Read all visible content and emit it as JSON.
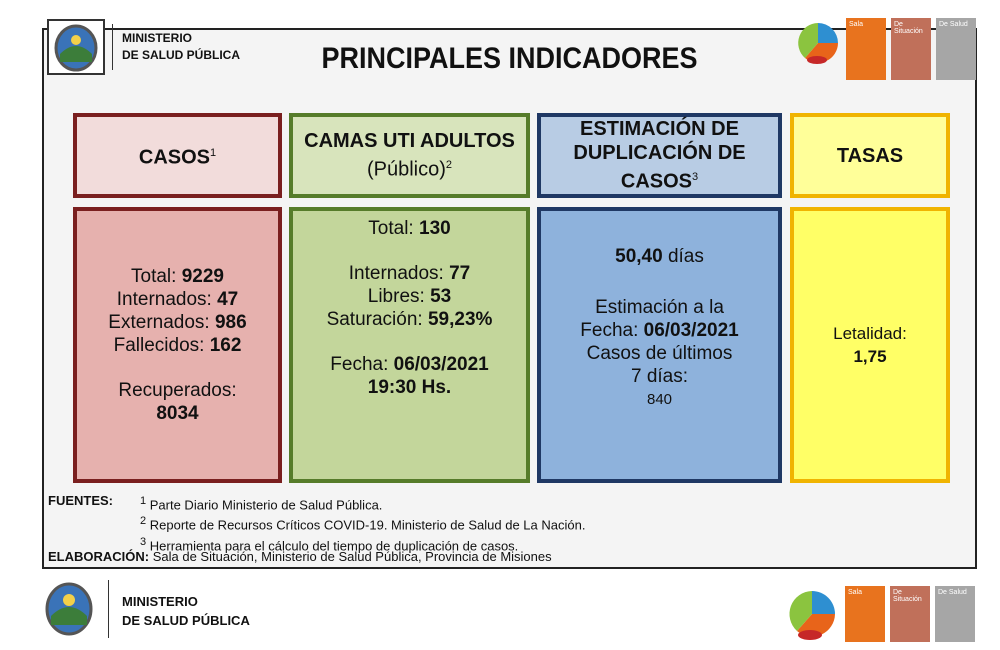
{
  "header": {
    "ministry_line1": "MINISTERIO",
    "ministry_line2": "DE SALUD PÚBLICA",
    "title": "PRINCIPALES INDICADORES",
    "logo_tabs": [
      "Sala",
      "De Situación",
      "De Salud"
    ]
  },
  "cards": [
    {
      "header": "CASOS",
      "header_sup": "1",
      "rows": [
        {
          "label": "Total:",
          "value": "9229"
        },
        {
          "label": "Internados:",
          "value": "47"
        },
        {
          "label": "Externados:",
          "value": "986"
        },
        {
          "label": "Fallecidos:",
          "value": "162"
        },
        {
          "label": "Recuperados:",
          "value": "8034"
        }
      ]
    },
    {
      "header": "CAMAS UTI ADULTOS",
      "subheader": "(Público)",
      "header_sup": "2",
      "rows": [
        {
          "label": "Total:",
          "value": "130"
        },
        {
          "label": "Internados:",
          "value": "77"
        },
        {
          "label": "Libres:",
          "value": "53"
        },
        {
          "label": "Saturación:",
          "value": "59,23%"
        },
        {
          "label": "Fecha:",
          "value": "06/03/2021"
        },
        {
          "value": "19:30 Hs."
        }
      ]
    },
    {
      "header": "ESTIMACIÓN DE DUPLICACIÓN DE CASOS",
      "header_sup": "3",
      "rows": [
        {
          "value": "50,40",
          "unit": "días"
        },
        {
          "label": "Estimación a la"
        },
        {
          "label": "Fecha:",
          "value": "06/03/2021"
        },
        {
          "label": "Casos de últimos"
        },
        {
          "label": "7 días:"
        },
        {
          "label": "840"
        }
      ]
    },
    {
      "header": "TASAS",
      "rows": [
        {
          "label": "Letalidad:"
        },
        {
          "value": "1,75"
        }
      ]
    }
  ],
  "footer": {
    "sources_label": "FUENTES:",
    "sources": [
      {
        "sup": "1",
        "text": "Parte Diario Ministerio de Salud Pública."
      },
      {
        "sup": "2",
        "text": "Reporte de Recursos Críticos COVID-19. Ministerio de Salud de La Nación."
      },
      {
        "sup": "3",
        "text": "Herramienta para el cálculo del tiempo de duplicación de casos."
      }
    ],
    "elaboration_label": "ELABORACIÓN:",
    "elaboration": "Sala de Situación, Ministerio de Salud Pública, Provincia de Misiones"
  }
}
